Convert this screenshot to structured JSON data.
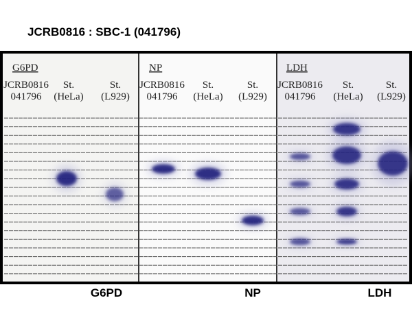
{
  "title": "JCRB0816 : SBC-1 (041796)",
  "panels": [
    {
      "name": "G6PD",
      "lanes": [
        [
          "JCRB0816",
          "041796"
        ],
        [
          "St.",
          "(HeLa)"
        ],
        [
          "St.",
          "(L929)"
        ]
      ],
      "caption": "G6PD"
    },
    {
      "name": "NP",
      "lanes": [
        [
          "JCRB0816",
          "041796"
        ],
        [
          "St.",
          "(HeLa)"
        ],
        [
          "St.",
          "(L929)"
        ]
      ],
      "caption": "NP"
    },
    {
      "name": "LDH",
      "lanes": [
        [
          "JCRB0816",
          "041796"
        ],
        [
          "St.",
          "(HeLa)"
        ],
        [
          "St.",
          "(L929)"
        ]
      ],
      "caption": "LDH"
    }
  ]
}
